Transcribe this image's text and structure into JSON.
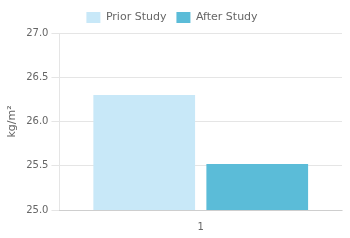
{
  "chart_data": {
    "type": "bar",
    "categories": [
      "1"
    ],
    "series": [
      {
        "name": "Prior Study",
        "color": "#c8e8f8",
        "values": [
          26.3
        ]
      },
      {
        "name": "After Study",
        "color": "#5bbcd8",
        "values": [
          25.52
        ]
      }
    ],
    "ylabel": "kg/m²",
    "ylim": [
      25.0,
      27.0
    ],
    "yticks": [
      {
        "value": 25.0,
        "label": "25.0"
      },
      25.5,
      {
        "value": 26.0,
        "label": "26.0"
      },
      26.5,
      {
        "value": 27.0,
        "label": "27.0"
      }
    ],
    "grid": "y",
    "legend": "top"
  }
}
